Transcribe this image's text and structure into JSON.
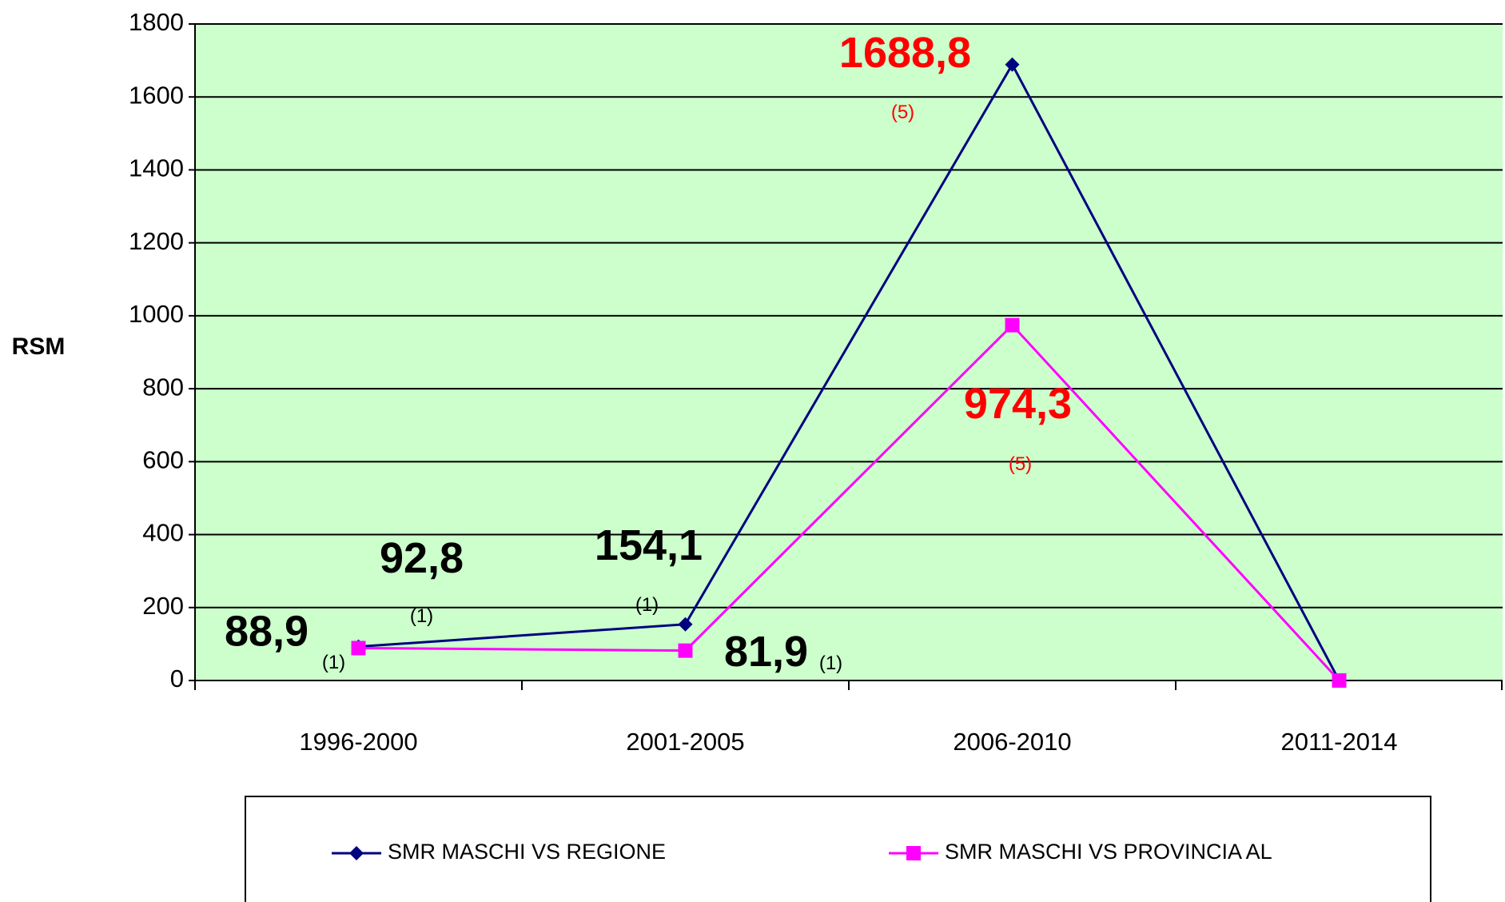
{
  "chart_data": {
    "type": "line",
    "y_label": "RSM",
    "categories": [
      "1996-2000",
      "2001-2005",
      "2006-2010",
      "2011-2014"
    ],
    "series": [
      {
        "name": "SMR MASCHI VS REGIONE",
        "color": "#000080",
        "marker": "diamond",
        "values": [
          92.8,
          154.1,
          1688.8,
          0
        ],
        "value_labels": [
          "92,8",
          "154,1",
          "1688,8",
          null
        ],
        "value_notes": [
          "(1)",
          "(1)",
          "(5)",
          null
        ],
        "value_label_colors": [
          "#000000",
          "#000000",
          "#ff0000",
          null
        ]
      },
      {
        "name": "SMR MASCHI VS PROVINCIA  AL",
        "color": "#ff00ff",
        "marker": "square",
        "values": [
          88.9,
          81.9,
          974.3,
          0
        ],
        "value_labels": [
          "88,9",
          "81,9",
          "974,3",
          null
        ],
        "value_notes": [
          "(1)",
          "(1)",
          "(5)",
          null
        ],
        "value_label_colors": [
          "#000000",
          "#000000",
          "#ff0000",
          null
        ]
      }
    ],
    "ylim": [
      0,
      1800
    ],
    "yticks": [
      0,
      200,
      400,
      600,
      800,
      1000,
      1200,
      1400,
      1600,
      1800
    ],
    "grid": true,
    "plot_background": "#ccffcc",
    "legend": "bottom"
  }
}
